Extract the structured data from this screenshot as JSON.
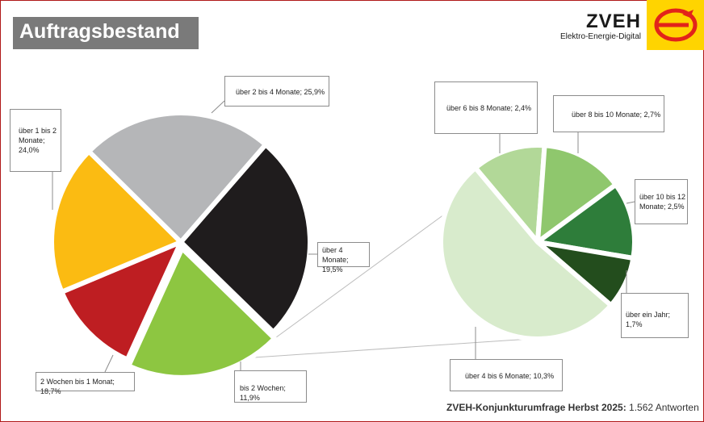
{
  "header": {
    "title": "Auftragsbestand",
    "logo_name": "ZVEH",
    "logo_tagline": "Elektro-Energie-Digital"
  },
  "footer": {
    "source": "ZVEH-Konjunkturumfrage Herbst 2025:",
    "respondents": "1.562 Antworten"
  },
  "colors": {
    "frame": "#b01818",
    "title_bg": "#7a7a7a",
    "logo_yellow": "#ffd400",
    "logo_red": "#e2231a"
  },
  "chart_data": [
    {
      "type": "pie",
      "title": "",
      "slices": [
        {
          "label": "über 2 bis 4 Monate; 25,9%",
          "value": 25.9,
          "color": "#1f1c1d"
        },
        {
          "label": "über 4 Monate; 19,5%",
          "value": 19.5,
          "color": "#8dc641"
        },
        {
          "label": "bis 2 Wochen; 11,9%",
          "value": 11.9,
          "color": "#be1e22"
        },
        {
          "label": "2 Wochen bis 1 Monat; 18,7%",
          "value": 18.7,
          "color": "#fbbb12"
        },
        {
          "label": "über 1 bis 2 Monate; 24,0%",
          "value": 24.0,
          "color": "#b5b6b8"
        }
      ]
    },
    {
      "type": "pie",
      "title": "",
      "slices": [
        {
          "label": "über 6 bis 8 Monate; 2,4%",
          "value": 2.4,
          "color": "#b2d898"
        },
        {
          "label": "über 8 bis 10 Monate; 2,7%",
          "value": 2.7,
          "color": "#8fc76d"
        },
        {
          "label": "über 10 bis 12 Monate; 2,5%",
          "value": 2.5,
          "color": "#2e7d3a"
        },
        {
          "label": "über ein Jahr; 1,7%",
          "value": 1.7,
          "color": "#234d1d"
        },
        {
          "label": "über 4 bis 6 Monate; 10,3%",
          "value": 10.3,
          "color": "#d8ebcc"
        }
      ]
    }
  ]
}
